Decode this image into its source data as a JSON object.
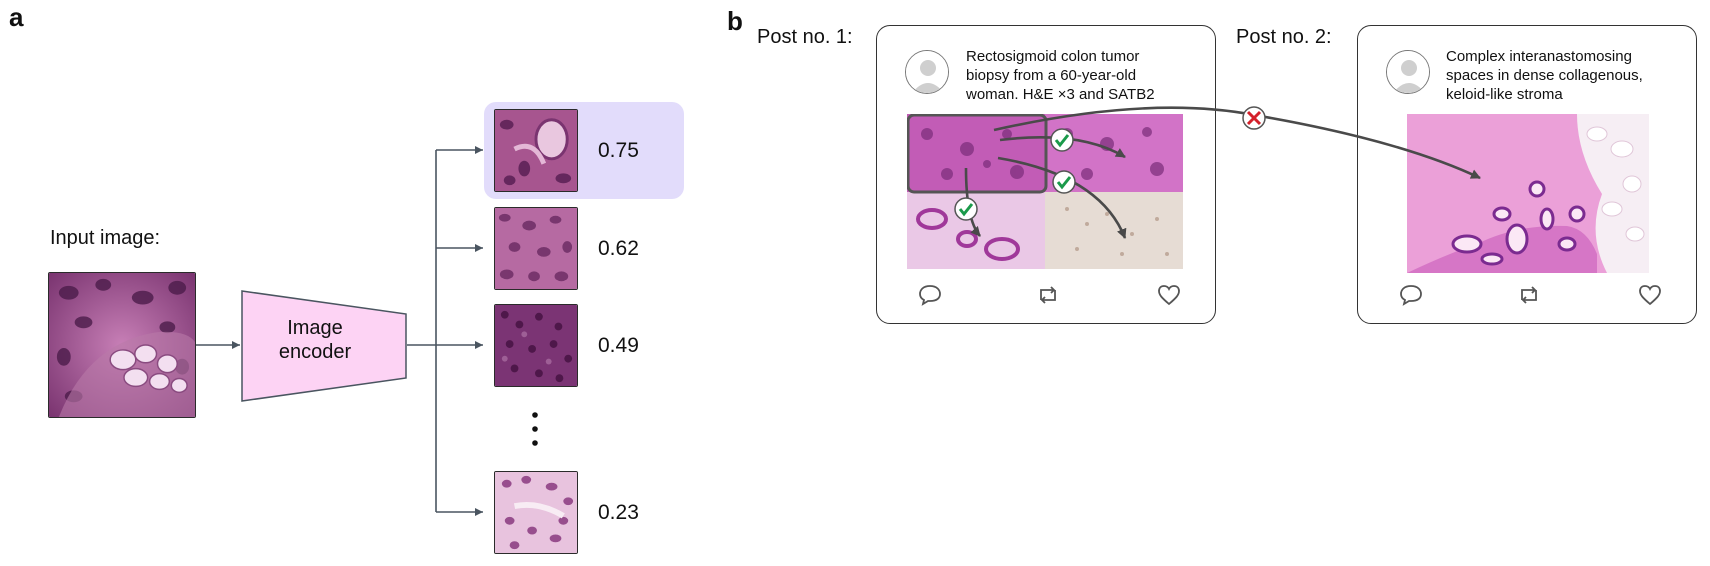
{
  "panel_a": {
    "letter": "a",
    "input_label": "Input image:",
    "encoder_label_line1": "Image",
    "encoder_label_line2": "encoder",
    "ellipsis": "⋮",
    "results": [
      {
        "score": "0.75",
        "highlighted": true
      },
      {
        "score": "0.62",
        "highlighted": false
      },
      {
        "score": "0.49",
        "highlighted": false
      },
      {
        "score": "0.23",
        "highlighted": false
      }
    ],
    "colors": {
      "encoder_fill": "#fdd3f4",
      "highlight": "#e2dcfb",
      "arrow": "#4a5560"
    }
  },
  "panel_b": {
    "letter": "b",
    "post1": {
      "label": "Post no. 1:",
      "caption_lines": [
        "Rectosigmoid colon tumor",
        "biopsy from a 60-year-old",
        "woman. H&E ×3 and SATB2"
      ],
      "avatar_icon": "user-avatar-icon",
      "actions": [
        "comment-icon",
        "repost-icon",
        "like-icon"
      ]
    },
    "post2": {
      "label": "Post no. 2:",
      "caption_lines": [
        "Complex interanastomosing",
        "spaces in dense collagenous,",
        "keloid-like stroma"
      ],
      "avatar_icon": "user-avatar-icon",
      "actions": [
        "comment-icon",
        "repost-icon",
        "like-icon"
      ]
    },
    "markers": {
      "match": "check-icon",
      "mismatch": "cross-icon"
    },
    "colors": {
      "check": "#1a9a4a",
      "cross": "#d4202a",
      "arrow": "#4a4a4a"
    }
  }
}
